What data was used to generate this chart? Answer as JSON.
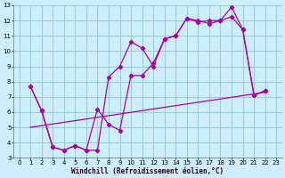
{
  "xlabel": "Windchill (Refroidissement éolien,°C)",
  "bg_color": "#cceeff",
  "line_color": "#aa00aa",
  "grid_color": "#99cccc",
  "xlim": [
    -0.5,
    23.5
  ],
  "ylim": [
    3,
    13
  ],
  "xticks": [
    0,
    1,
    2,
    3,
    4,
    5,
    6,
    7,
    8,
    9,
    10,
    11,
    12,
    13,
    14,
    15,
    16,
    17,
    18,
    19,
    20,
    21,
    22,
    23
  ],
  "yticks": [
    3,
    4,
    5,
    6,
    7,
    8,
    9,
    10,
    11,
    12,
    13
  ],
  "line1_x": [
    1,
    2,
    3,
    4,
    5,
    6,
    7,
    8,
    9,
    10,
    11,
    12,
    13,
    14,
    15,
    16,
    17,
    18,
    19,
    20,
    21,
    22
  ],
  "line1_y": [
    7.7,
    6.1,
    3.7,
    3.5,
    3.8,
    3.5,
    3.5,
    8.3,
    9.0,
    10.6,
    10.2,
    9.0,
    10.8,
    11.0,
    12.15,
    12.0,
    11.8,
    12.0,
    12.25,
    11.4,
    7.1,
    7.4
  ],
  "line2_x": [
    1,
    2,
    3,
    4,
    5,
    6,
    7,
    8,
    9,
    10,
    11,
    12,
    13,
    14,
    15,
    16,
    17,
    18,
    19,
    20,
    21,
    22
  ],
  "line2_y": [
    7.7,
    6.1,
    3.7,
    3.5,
    3.8,
    3.5,
    6.2,
    5.2,
    4.8,
    8.4,
    8.4,
    9.2,
    10.8,
    11.0,
    12.15,
    11.9,
    12.0,
    12.0,
    12.9,
    11.4,
    7.1,
    7.4
  ],
  "line3_x": [
    1,
    22
  ],
  "line3_y": [
    5.0,
    7.3
  ]
}
